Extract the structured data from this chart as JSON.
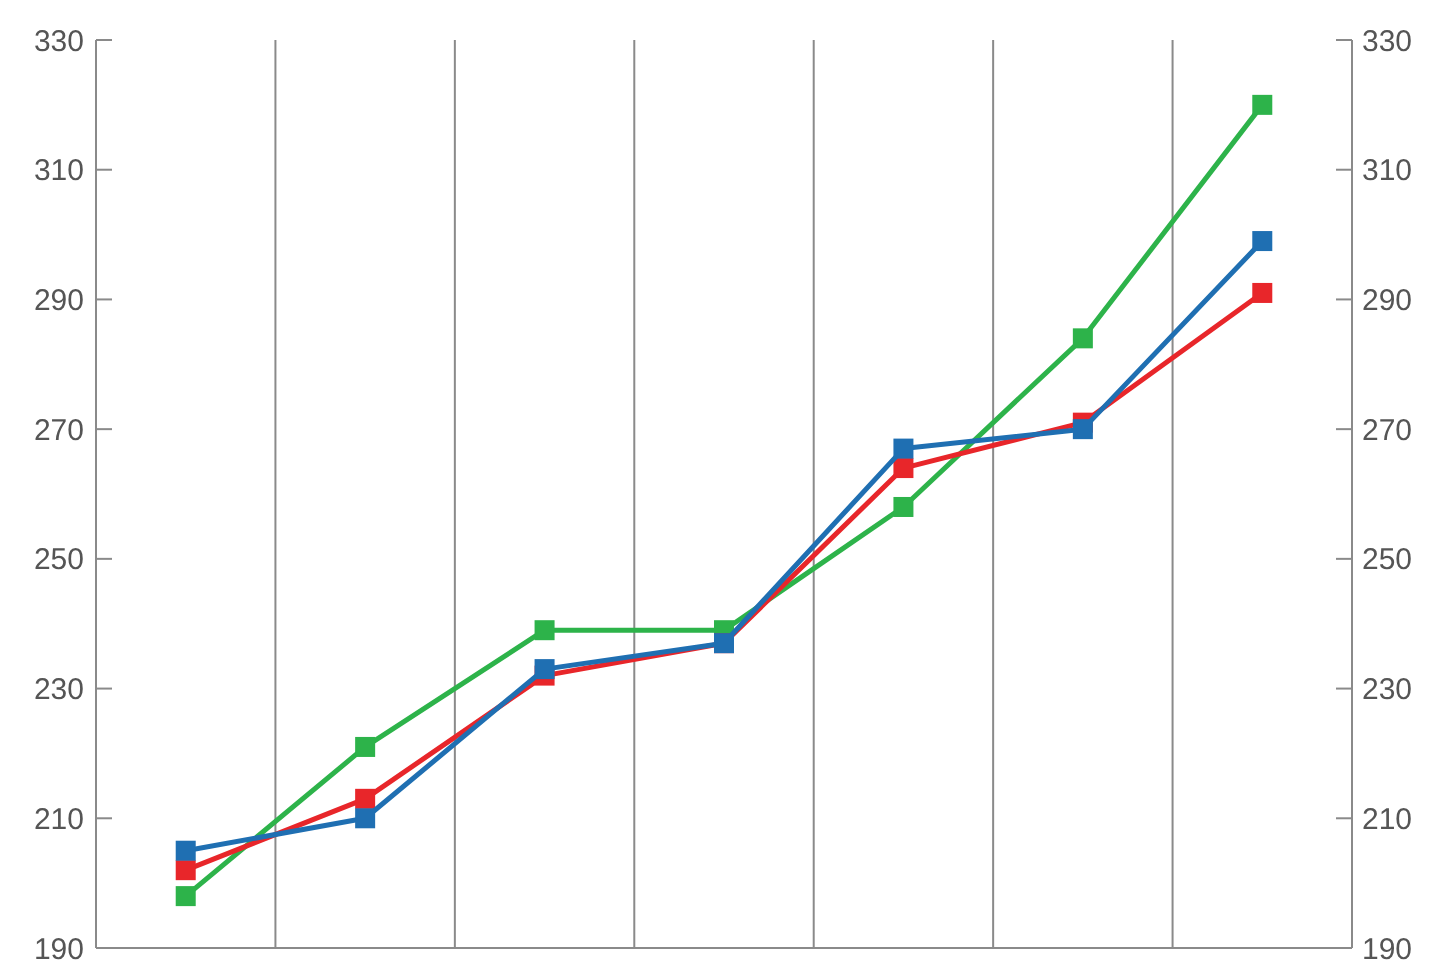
{
  "chart_data": {
    "type": "line",
    "categories": [
      null,
      null,
      null,
      null,
      null,
      null,
      null
    ],
    "series": [
      {
        "color": "#2db34a",
        "values": [
          198,
          221,
          239,
          239,
          258,
          284,
          320
        ]
      },
      {
        "color": "#e8262a",
        "values": [
          202,
          213,
          232,
          237,
          264,
          271,
          291
        ]
      },
      {
        "color": "#1f6fb2",
        "values": [
          205,
          210,
          233,
          237,
          267,
          270,
          299
        ]
      }
    ],
    "ylim": [
      190,
      330
    ],
    "yticks": [
      190,
      210,
      230,
      250,
      270,
      290,
      310,
      330
    ],
    "y2lim": [
      190,
      330
    ],
    "y2ticks": [
      190,
      210,
      230,
      250,
      270,
      290,
      310,
      330
    ],
    "grid": "x",
    "marker": "square",
    "line_style": "solid"
  }
}
